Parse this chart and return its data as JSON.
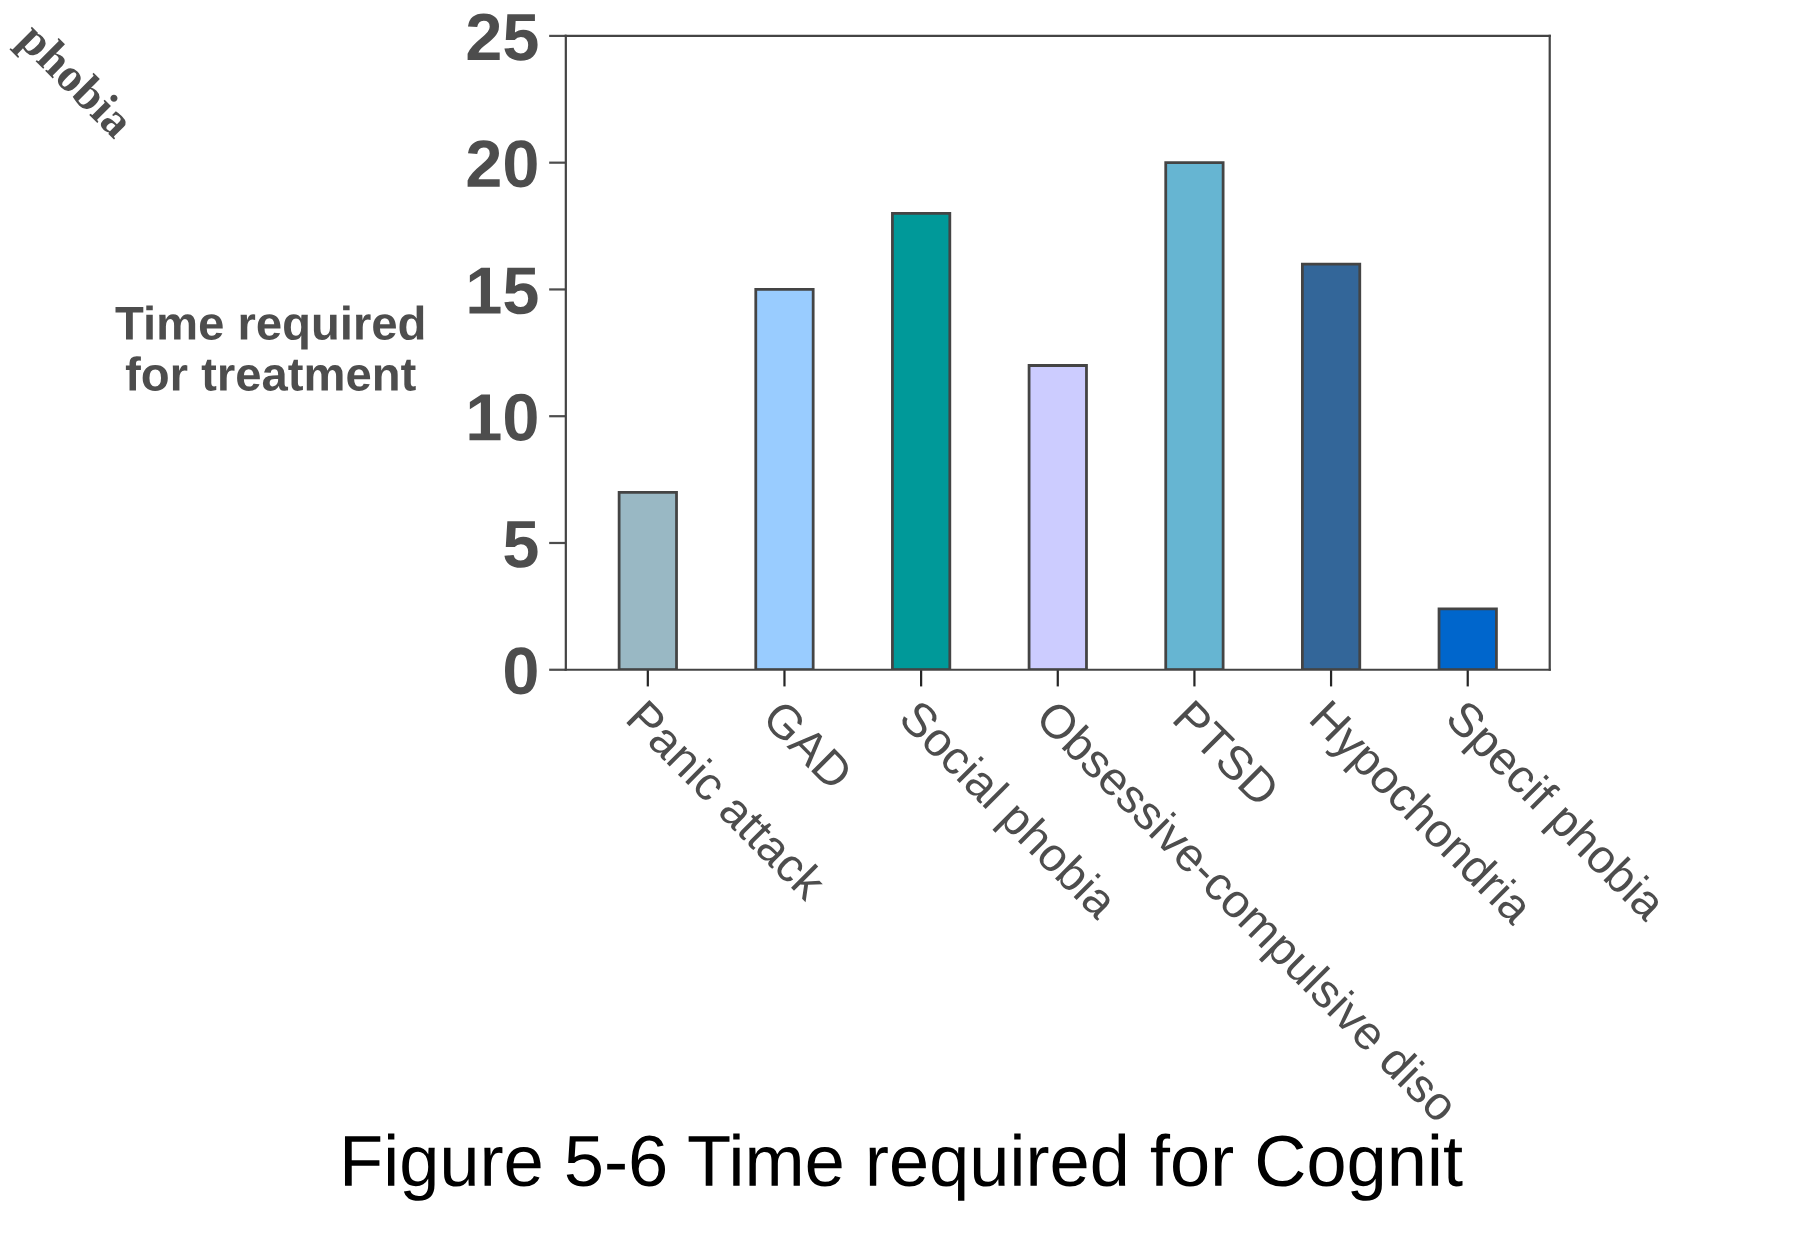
{
  "chart_data": {
    "type": "bar",
    "title": "Figure 5-6 Time required for Cognit",
    "ylabel": "Time required\nfor treatment",
    "annotations": [
      "phobia"
    ],
    "categories": [
      "Panic attack",
      "GAD",
      "Social phobia",
      "Obsessive-compulsive diso",
      "PTSD",
      "Hypochondria",
      "Specif phobia"
    ],
    "values": [
      7,
      15,
      18,
      12,
      20,
      16,
      2.4
    ],
    "colors": [
      "#99b8c4",
      "#99ccff",
      "#009999",
      "#ccccff",
      "#66b5d2",
      "#336699",
      "#0066cc"
    ],
    "ylim": [
      0,
      25
    ],
    "yticks": [
      0,
      5,
      10,
      15,
      20,
      25
    ],
    "grid": false,
    "legend": false
  }
}
